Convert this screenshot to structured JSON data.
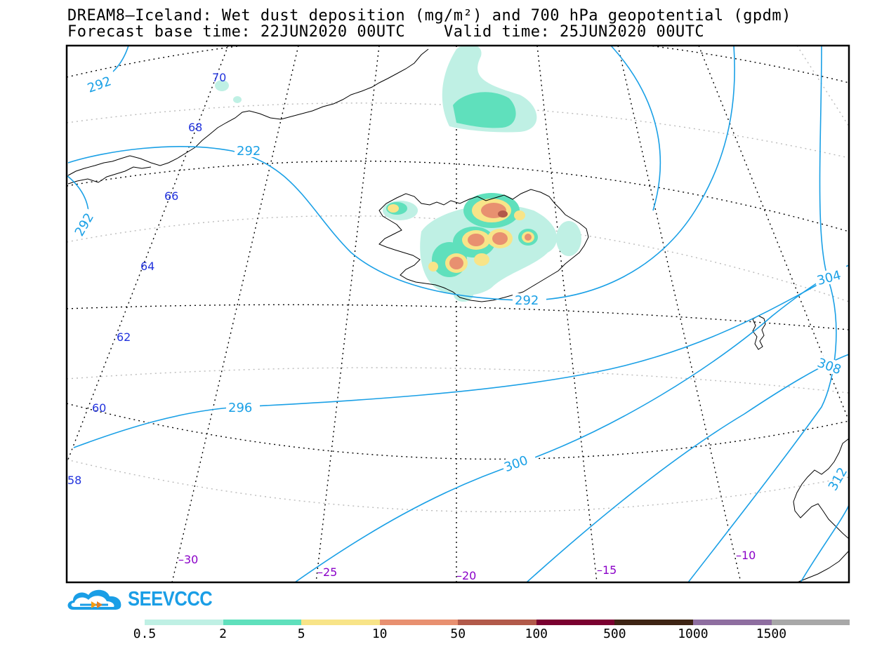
{
  "title_line1": "DREAM8–Iceland: Wet dust deposition (mg/m²) and 700 hPa geopotential (gpdm)",
  "title_line2": "Forecast base time: 22JUN2020 00UTC    Valid time: 25JUN2020 00UTC",
  "lat_labels": [
    "70",
    "68",
    "66",
    "64",
    "62",
    "60",
    "58"
  ],
  "lon_labels": [
    "–30",
    "–25",
    "–20",
    "–15",
    "–10"
  ],
  "contour_labels": [
    "292",
    "292",
    "292",
    "292",
    "296",
    "300",
    "304",
    "308",
    "312"
  ],
  "logo": {
    "name": "SEEVCCC",
    "icon": "cloud-logo-icon"
  },
  "colorbar": {
    "labels": [
      "0.5",
      "2",
      "5",
      "10",
      "50",
      "100",
      "500",
      "1000",
      "1500"
    ],
    "colors": [
      "#bff0e4",
      "#5fe0bc",
      "#f8e488",
      "#e89070",
      "#b25a4a",
      "#7a0030",
      "#3e2414",
      "#8e6ea0",
      "#a8a8a8"
    ]
  },
  "colors": {
    "contour": "#1aa0e6",
    "frame": "#000000",
    "lat_text": "#2233dd",
    "lon_text": "#8a00c8"
  }
}
